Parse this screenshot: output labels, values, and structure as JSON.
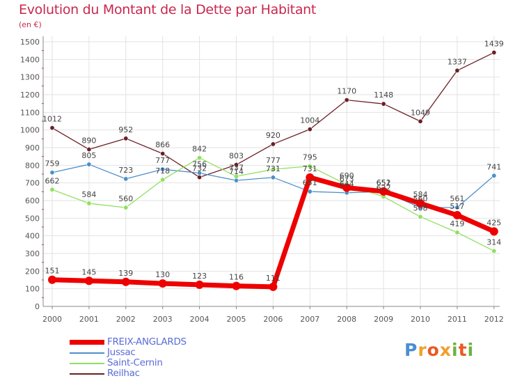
{
  "title": "Evolution du Montant de la Dette par Habitant",
  "subtitle": "(en €)",
  "logo": "Proxiti",
  "chart_data": {
    "type": "line",
    "categories": [
      "2000",
      "2001",
      "2002",
      "2003",
      "2004",
      "2005",
      "2006",
      "2007",
      "2008",
      "2009",
      "2010",
      "2011",
      "2012"
    ],
    "ylim": [
      0,
      1500
    ],
    "yticks": [
      0,
      100,
      200,
      300,
      400,
      500,
      600,
      700,
      800,
      900,
      1000,
      1100,
      1200,
      1300,
      1400,
      1500
    ],
    "grid": true,
    "legend_position": "bottom-left",
    "series": [
      {
        "name": "Reilhac",
        "color": "#6b1f24",
        "values": [
          1012,
          890,
          952,
          866,
          732,
          803,
          920,
          1004,
          1170,
          1148,
          1049,
          1337,
          1439
        ]
      },
      {
        "name": "Jussac",
        "color": "#4d8fc9",
        "values": [
          759,
          805,
          723,
          777,
          756,
          714,
          731,
          651,
          644,
          651,
          560,
          561,
          741
        ]
      },
      {
        "name": "Saint-Cernin",
        "color": "#8fe060",
        "values": [
          662,
          584,
          560,
          718,
          842,
          737,
          777,
          795,
          690,
          622,
          508,
          419,
          314
        ]
      },
      {
        "name": "FREIX-ANGLARDS",
        "color": "#ee0000",
        "values": [
          151,
          145,
          139,
          130,
          123,
          116,
          111,
          731,
          673,
          652,
          584,
          517,
          425
        ]
      }
    ]
  }
}
